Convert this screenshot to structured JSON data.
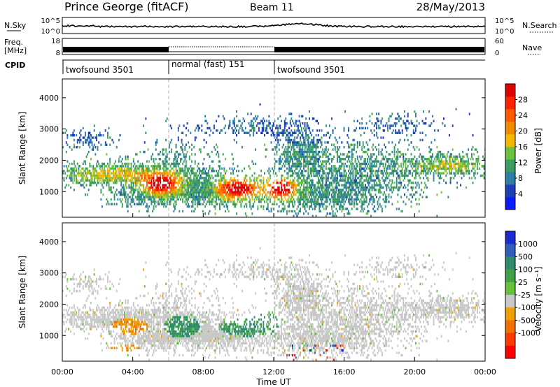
{
  "header": {
    "station": "Prince George (fitACF)",
    "beam": "Beam 11",
    "date": "28/May/2013"
  },
  "status_panel": {
    "noise_sky_label": "N.Sky",
    "noise_search_label": "N.Search",
    "noise_ticks": [
      "10^5",
      "10^0"
    ],
    "freq_label_line1": "Freq.",
    "freq_label_line2": "[MHz]",
    "freq_ticks": [
      "18",
      "8"
    ],
    "nave_ticks": [
      "60",
      "0"
    ],
    "nave_label": "Nave",
    "cpid_label": "CPID",
    "cpid_segments": [
      {
        "name": "twofsound 3501",
        "start_hr": 0,
        "end_hr": 6
      },
      {
        "name": "normal (fast) 151",
        "start_hr": 6,
        "end_hr": 12
      },
      {
        "name": "twofsound 3501",
        "start_hr": 12,
        "end_hr": 24
      }
    ]
  },
  "chart_data": [
    {
      "type": "heatmap",
      "title": "",
      "xlabel": "Time UT",
      "ylabel": "Slant Range [km]",
      "xlim": [
        0,
        24
      ],
      "ylim": [
        180,
        4600
      ],
      "x_ticks": [
        "00:00",
        "04:00",
        "08:00",
        "12:00",
        "16:00",
        "20:00",
        "00:00"
      ],
      "y_ticks": [
        1000,
        2000,
        3000,
        4000
      ],
      "colorbar_label": "Power [dB]",
      "colorbar_ticks": [
        "28",
        "24",
        "20",
        "16",
        "12",
        "8",
        "4"
      ],
      "colorbar_colors": [
        "#0a1bff",
        "#1f3fb7",
        "#2d7fa6",
        "#3b9d62",
        "#6cc240",
        "#f5b800",
        "#f08a00",
        "#ff5a00",
        "#ff2200",
        "#e00000"
      ],
      "colorbar_range": [
        0,
        32
      ]
    },
    {
      "type": "heatmap",
      "title": "",
      "xlabel": "Time UT",
      "ylabel": "Slant Range [km]",
      "xlim": [
        0,
        24
      ],
      "ylim": [
        180,
        4600
      ],
      "x_ticks": [
        "00:00",
        "04:00",
        "08:00",
        "12:00",
        "16:00",
        "20:00",
        "00:00"
      ],
      "y_ticks": [
        1000,
        2000,
        3000,
        4000
      ],
      "colorbar_label": "Velocity [m s⁻¹]",
      "colorbar_ticks": [
        "1000",
        "500",
        "100",
        "25",
        "-25",
        "-100",
        "-500",
        "-1000"
      ],
      "colorbar_colors": [
        "#1a2bd0",
        "#2f5fb8",
        "#2f8c6e",
        "#3fa048",
        "#66c23a",
        "#c8c8c8",
        "#f0a000",
        "#f07000",
        "#ff3a00",
        "#ff0000"
      ]
    }
  ]
}
